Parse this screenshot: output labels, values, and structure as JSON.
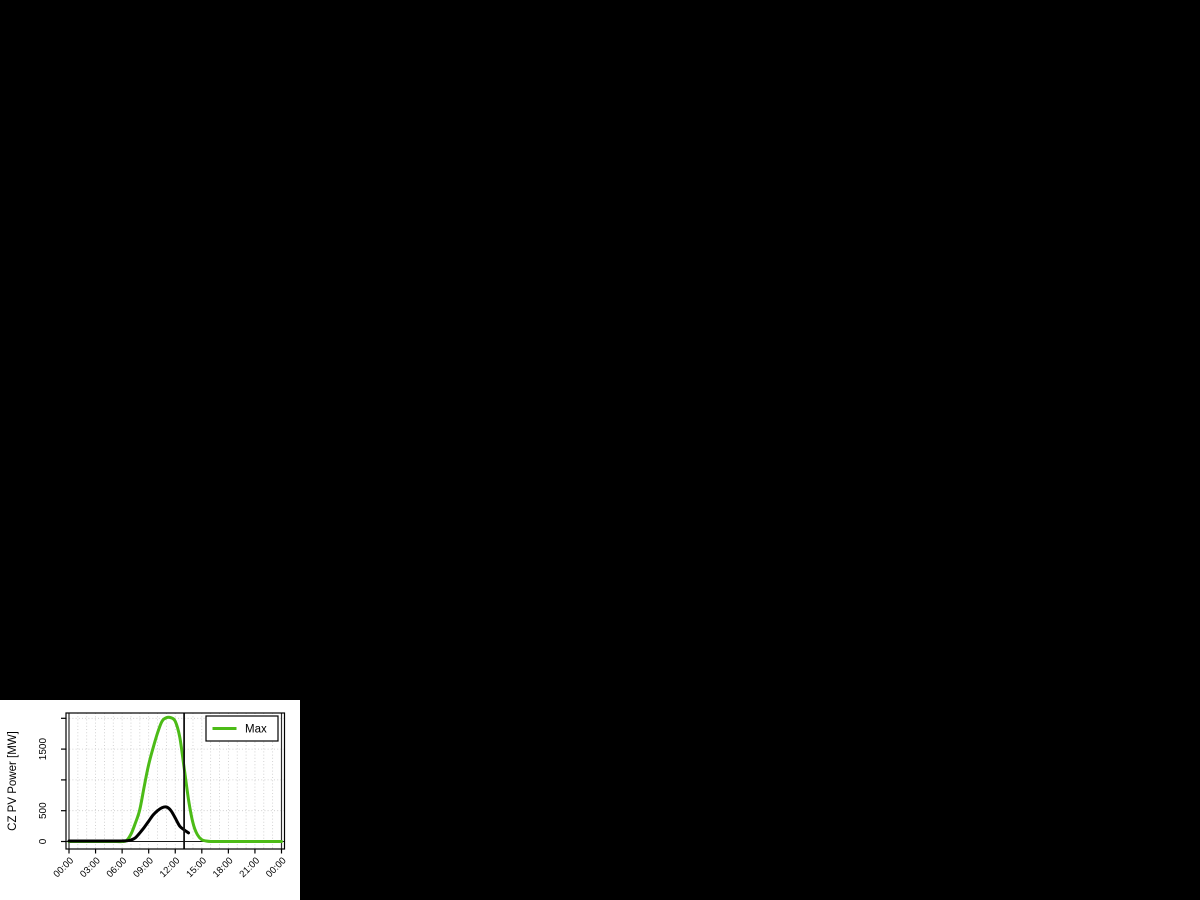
{
  "page": {
    "background_color": "#000000",
    "panel_background_color": "#ffffff"
  },
  "chart_data": {
    "type": "line",
    "title": "",
    "xlabel": "",
    "ylabel": "CZ PV Power [MW]",
    "xlim_hours": [
      0,
      24
    ],
    "ylim": [
      0,
      2000
    ],
    "x_ticks": [
      {
        "hour": 0,
        "label": "00:00"
      },
      {
        "hour": 3,
        "label": "03:00"
      },
      {
        "hour": 6,
        "label": "06:00"
      },
      {
        "hour": 9,
        "label": "09:00"
      },
      {
        "hour": 12,
        "label": "12:00"
      },
      {
        "hour": 15,
        "label": "15:00"
      },
      {
        "hour": 18,
        "label": "18:00"
      },
      {
        "hour": 21,
        "label": "21:00"
      },
      {
        "hour": 24,
        "label": "00:00"
      }
    ],
    "y_ticks": [
      {
        "value": 0,
        "label": "0"
      },
      {
        "value": 500,
        "label": "500"
      },
      {
        "value": 1000,
        "label": ""
      },
      {
        "value": 1500,
        "label": "1500"
      },
      {
        "value": 2000,
        "label": ""
      }
    ],
    "grid": {
      "show": true,
      "x_step_hours": 1,
      "style": "dotted",
      "color": "#c8c8c8"
    },
    "markers": {
      "day_boundary_hours": [
        0,
        24
      ],
      "current_time_hour": 13,
      "zero_line_value": 0,
      "line_color": "#2e2e2e"
    },
    "legend": {
      "position": "top-right",
      "border_color": "#000000",
      "entries": [
        {
          "label": "Max",
          "color": "#4CBB17"
        }
      ]
    },
    "series": [
      {
        "name": "Max",
        "color": "#4CBB17",
        "width": 3,
        "in_legend": true,
        "points": [
          [
            0,
            0
          ],
          [
            1,
            0
          ],
          [
            2,
            0
          ],
          [
            3,
            0
          ],
          [
            4,
            0
          ],
          [
            5,
            0
          ],
          [
            6,
            0
          ],
          [
            6.5,
            15
          ],
          [
            7,
            120
          ],
          [
            7.5,
            300
          ],
          [
            8,
            520
          ],
          [
            8.5,
            900
          ],
          [
            9,
            1250
          ],
          [
            9.5,
            1520
          ],
          [
            10,
            1760
          ],
          [
            10.5,
            1950
          ],
          [
            11,
            2010
          ],
          [
            11.5,
            2010
          ],
          [
            12,
            1950
          ],
          [
            12.5,
            1700
          ],
          [
            13,
            1200
          ],
          [
            13.5,
            680
          ],
          [
            14,
            300
          ],
          [
            14.5,
            110
          ],
          [
            15,
            30
          ],
          [
            15.5,
            8
          ],
          [
            16,
            0
          ],
          [
            17,
            0
          ],
          [
            18,
            0
          ],
          [
            19,
            0
          ],
          [
            20,
            0
          ],
          [
            21,
            0
          ],
          [
            22,
            0
          ],
          [
            23,
            0
          ],
          [
            24,
            0
          ]
        ]
      },
      {
        "name": "",
        "color": "#000000",
        "width": 3,
        "in_legend": false,
        "points": [
          [
            0,
            8
          ],
          [
            1,
            8
          ],
          [
            2,
            8
          ],
          [
            3,
            8
          ],
          [
            4,
            8
          ],
          [
            5,
            8
          ],
          [
            6,
            10
          ],
          [
            6.5,
            12
          ],
          [
            7,
            25
          ],
          [
            7.5,
            60
          ],
          [
            8,
            140
          ],
          [
            8.5,
            230
          ],
          [
            9,
            330
          ],
          [
            9.5,
            430
          ],
          [
            10,
            500
          ],
          [
            10.5,
            548
          ],
          [
            11,
            560
          ],
          [
            11.5,
            505
          ],
          [
            12,
            380
          ],
          [
            12.5,
            250
          ],
          [
            13,
            190
          ],
          [
            13.5,
            140
          ]
        ]
      }
    ]
  }
}
